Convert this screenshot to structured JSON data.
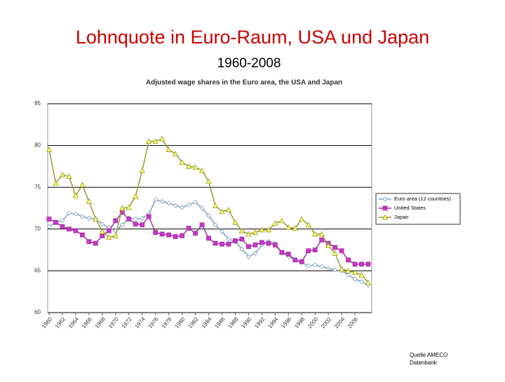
{
  "chart_data": {
    "type": "line",
    "title": "Lohnquote in Euro-Raum, USA und Japan",
    "subtitle": "1960-2008",
    "chart_title": "Adjusted wage shares in the Euro area, the USA and Japan",
    "source": [
      "Quelle AMECO",
      "Datenbank"
    ],
    "x": [
      1960,
      1961,
      1962,
      1963,
      1964,
      1965,
      1966,
      1967,
      1968,
      1969,
      1970,
      1971,
      1972,
      1973,
      1974,
      1975,
      1976,
      1977,
      1978,
      1979,
      1980,
      1981,
      1982,
      1983,
      1984,
      1985,
      1986,
      1987,
      1988,
      1989,
      1990,
      1991,
      1992,
      1993,
      1994,
      1995,
      1996,
      1997,
      1998,
      1999,
      2000,
      2001,
      2002,
      2003,
      2004,
      2005,
      2006,
      2007,
      2008
    ],
    "xlim": [
      1960,
      2008
    ],
    "xticks": [
      1960,
      1962,
      1964,
      1966,
      1968,
      1970,
      1972,
      1974,
      1976,
      1978,
      1980,
      1982,
      1984,
      1986,
      1988,
      1990,
      1992,
      1994,
      1996,
      1998,
      2000,
      2002,
      2004,
      2006
    ],
    "ylim": [
      60,
      85
    ],
    "yticks": [
      60,
      65,
      70,
      75,
      80,
      85
    ],
    "grid": true,
    "legend": "right",
    "series": [
      {
        "name": "Euro area (12 countries)",
        "color": "#7f9fbf",
        "marker": "diamond",
        "values": [
          70.3,
          70.8,
          71.0,
          71.9,
          71.8,
          71.5,
          71.3,
          71.2,
          70.6,
          70.2,
          69.8,
          70.5,
          71.3,
          71.2,
          71.3,
          71.8,
          73.5,
          73.3,
          73.1,
          72.8,
          72.6,
          72.9,
          73.2,
          72.5,
          71.6,
          70.5,
          69.7,
          68.8,
          68.5,
          67.6,
          66.7,
          67.1,
          68.1,
          68.5,
          68.3,
          67.2,
          66.7,
          66.3,
          66.0,
          65.6,
          65.7,
          65.5,
          65.3,
          65.1,
          65.0,
          64.5,
          64.0,
          63.7,
          63.3
        ]
      },
      {
        "name": "United States",
        "color": "#993399",
        "marker": "square",
        "values": [
          71.2,
          70.8,
          70.3,
          70.0,
          69.8,
          69.3,
          68.5,
          68.3,
          69.2,
          69.8,
          71.0,
          72.0,
          71.2,
          70.6,
          70.5,
          71.5,
          69.6,
          69.4,
          69.3,
          69.1,
          69.2,
          70.1,
          69.5,
          70.5,
          68.9,
          68.3,
          68.2,
          68.2,
          68.6,
          68.8,
          67.9,
          68.1,
          68.4,
          68.3,
          68.1,
          67.2,
          67.0,
          66.3,
          66.1,
          67.4,
          67.5,
          68.7,
          68.3,
          67.8,
          67.4,
          66.3,
          65.8,
          65.8,
          65.8
        ]
      },
      {
        "name": "Japan",
        "color": "#999933",
        "marker": "triangle",
        "values": [
          79.5,
          75.5,
          76.5,
          76.3,
          74.0,
          75.3,
          73.3,
          71.2,
          69.7,
          69.0,
          69.2,
          72.5,
          72.6,
          73.9,
          77.0,
          80.5,
          80.5,
          80.8,
          79.5,
          79.0,
          78.0,
          77.5,
          77.4,
          77.0,
          75.7,
          72.8,
          72.1,
          72.3,
          70.8,
          69.8,
          69.4,
          69.6,
          69.9,
          69.9,
          70.7,
          71.0,
          70.2,
          70.1,
          71.2,
          70.5,
          69.4,
          69.4,
          68.0,
          67.1,
          65.2,
          65.0,
          64.8,
          64.5,
          63.6
        ]
      }
    ]
  }
}
